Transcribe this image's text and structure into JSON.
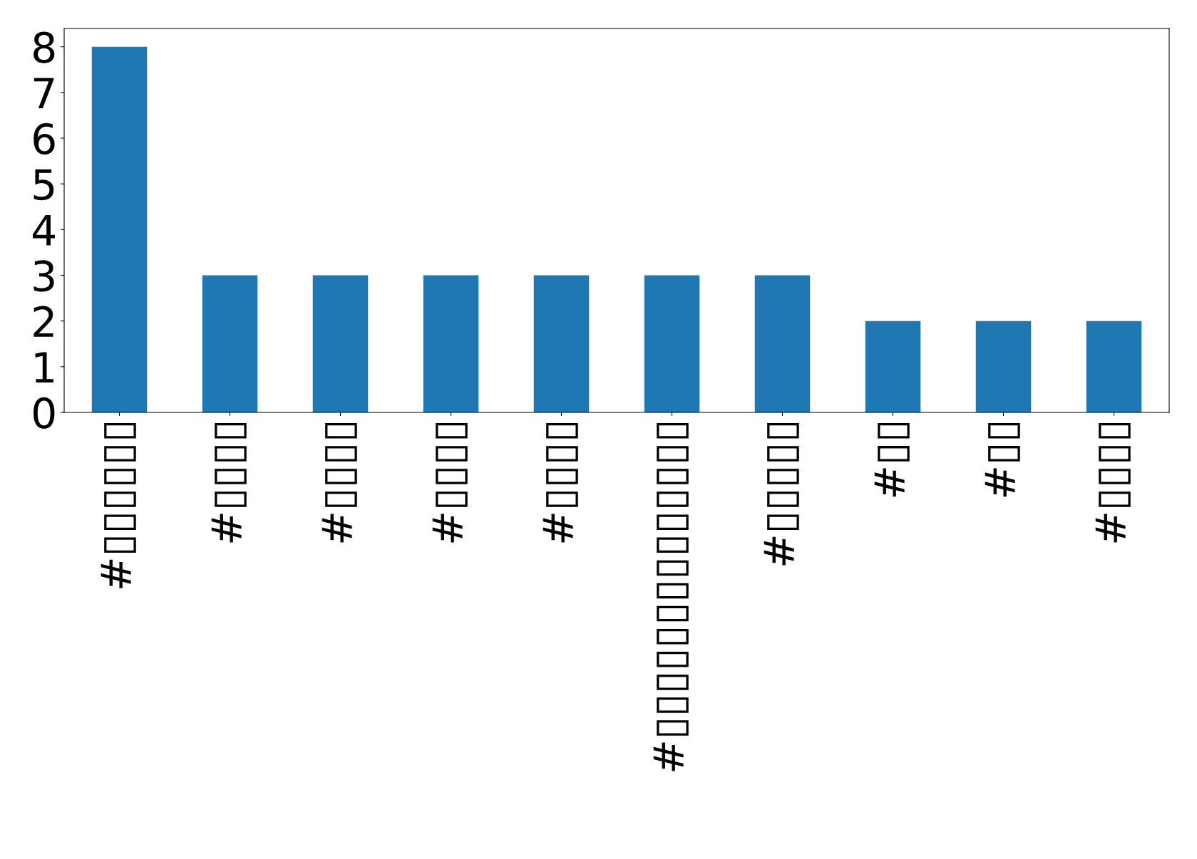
{
  "chart_data": {
    "type": "bar",
    "categories": [
      "#▯▯▯▯▯▯",
      "#▯▯▯▯",
      "#▯▯▯▯",
      "#▯▯▯▯",
      "#▯▯▯▯",
      "#▯▯▯▯▯▯▯▯▯▯▯▯▯▯",
      "#▯▯▯▯▯",
      "#▯▯",
      "#▯▯",
      "#▯▯▯▯"
    ],
    "values": [
      8,
      3,
      3,
      3,
      3,
      3,
      3,
      2,
      2,
      2
    ],
    "color": "#1f77b4",
    "ylim": [
      0,
      8.4
    ],
    "yticks": [
      0,
      1,
      2,
      3,
      4,
      5,
      6,
      7,
      8
    ],
    "grid": false
  }
}
